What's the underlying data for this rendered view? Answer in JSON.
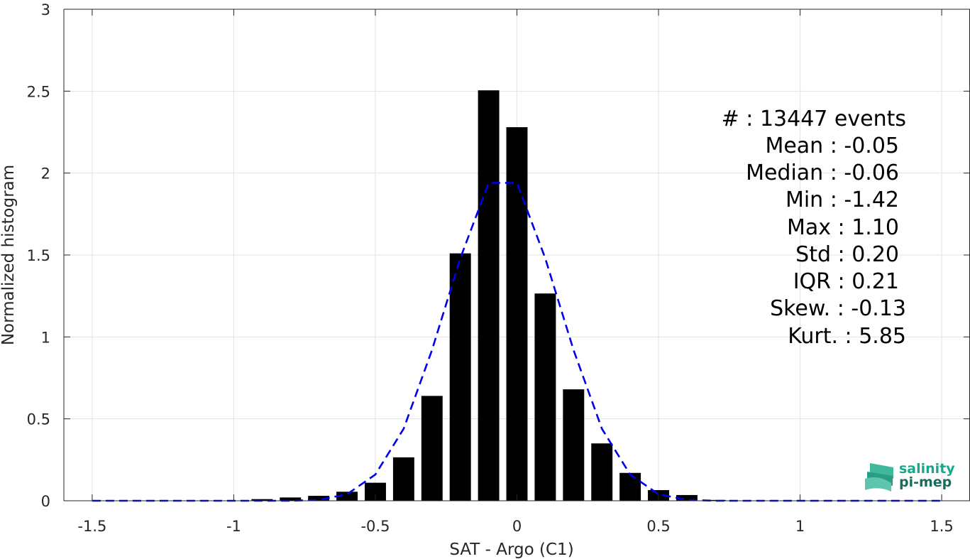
{
  "chart_data": {
    "type": "bar",
    "xlabel": "SAT - Argo (C1)",
    "ylabel": "Normalized histogram",
    "xlim": [
      -1.6,
      1.6
    ],
    "ylim": [
      0,
      3
    ],
    "grid": true,
    "x_ticks": [
      {
        "value": -1.5,
        "label": "-1.5"
      },
      {
        "value": -1,
        "label": "-1"
      },
      {
        "value": -0.5,
        "label": "-0.5"
      },
      {
        "value": 0,
        "label": "0"
      },
      {
        "value": 0.5,
        "label": "0.5"
      },
      {
        "value": 1,
        "label": "1"
      },
      {
        "value": 1.5,
        "label": "1.5"
      }
    ],
    "y_ticks": [
      {
        "value": 0,
        "label": "0"
      },
      {
        "value": 0.5,
        "label": "0.5"
      },
      {
        "value": 1,
        "label": "1"
      },
      {
        "value": 1.5,
        "label": "1.5"
      },
      {
        "value": 2,
        "label": "2"
      },
      {
        "value": 2.5,
        "label": "2.5"
      },
      {
        "value": 3,
        "label": "3"
      }
    ],
    "bar_width": 0.075,
    "bars": {
      "x": [
        -0.9,
        -0.8,
        -0.7,
        -0.6,
        -0.5,
        -0.4,
        -0.3,
        -0.2,
        -0.1,
        0.0,
        0.1,
        0.2,
        0.3,
        0.4,
        0.5,
        0.6,
        0.7
      ],
      "values": [
        0.01,
        0.02,
        0.03,
        0.055,
        0.11,
        0.265,
        0.64,
        1.51,
        2.505,
        2.28,
        1.265,
        0.68,
        0.35,
        0.17,
        0.065,
        0.035,
        0.005
      ]
    },
    "fit_curve": {
      "color": "#0000ee",
      "style": "dashed",
      "x": [
        -1.5,
        -1.4,
        -1.3,
        -1.2,
        -1.1,
        -1.0,
        -0.9,
        -0.8,
        -0.7,
        -0.6,
        -0.5,
        -0.4,
        -0.3,
        -0.2,
        -0.1,
        0.0,
        0.1,
        0.2,
        0.3,
        0.4,
        0.5,
        0.6,
        0.7,
        0.8,
        0.9,
        1.0,
        1.1,
        1.2,
        1.3,
        1.4,
        1.5
      ],
      "y": [
        0,
        0,
        0,
        0,
        0,
        0,
        0,
        0,
        0.005,
        0.04,
        0.16,
        0.44,
        0.92,
        1.48,
        1.94,
        1.94,
        1.48,
        0.92,
        0.44,
        0.16,
        0.04,
        0.005,
        0,
        0,
        0,
        0,
        0,
        0,
        0,
        0,
        0
      ]
    },
    "bar_color": "#000000"
  },
  "stats": {
    "count": "#  : 13447 events",
    "mean": "Mean : -0.05",
    "median": "Median : -0.06",
    "min": "Min : -1.42",
    "max": "Max : 1.10",
    "std": "Std : 0.20",
    "iqr": "IQR : 0.21",
    "skew": "Skew. : -0.13",
    "kurt": "Kurt. : 5.85"
  },
  "logo": {
    "line1": "salinity",
    "line2": "pi-mep",
    "color": "#1aa58c"
  }
}
